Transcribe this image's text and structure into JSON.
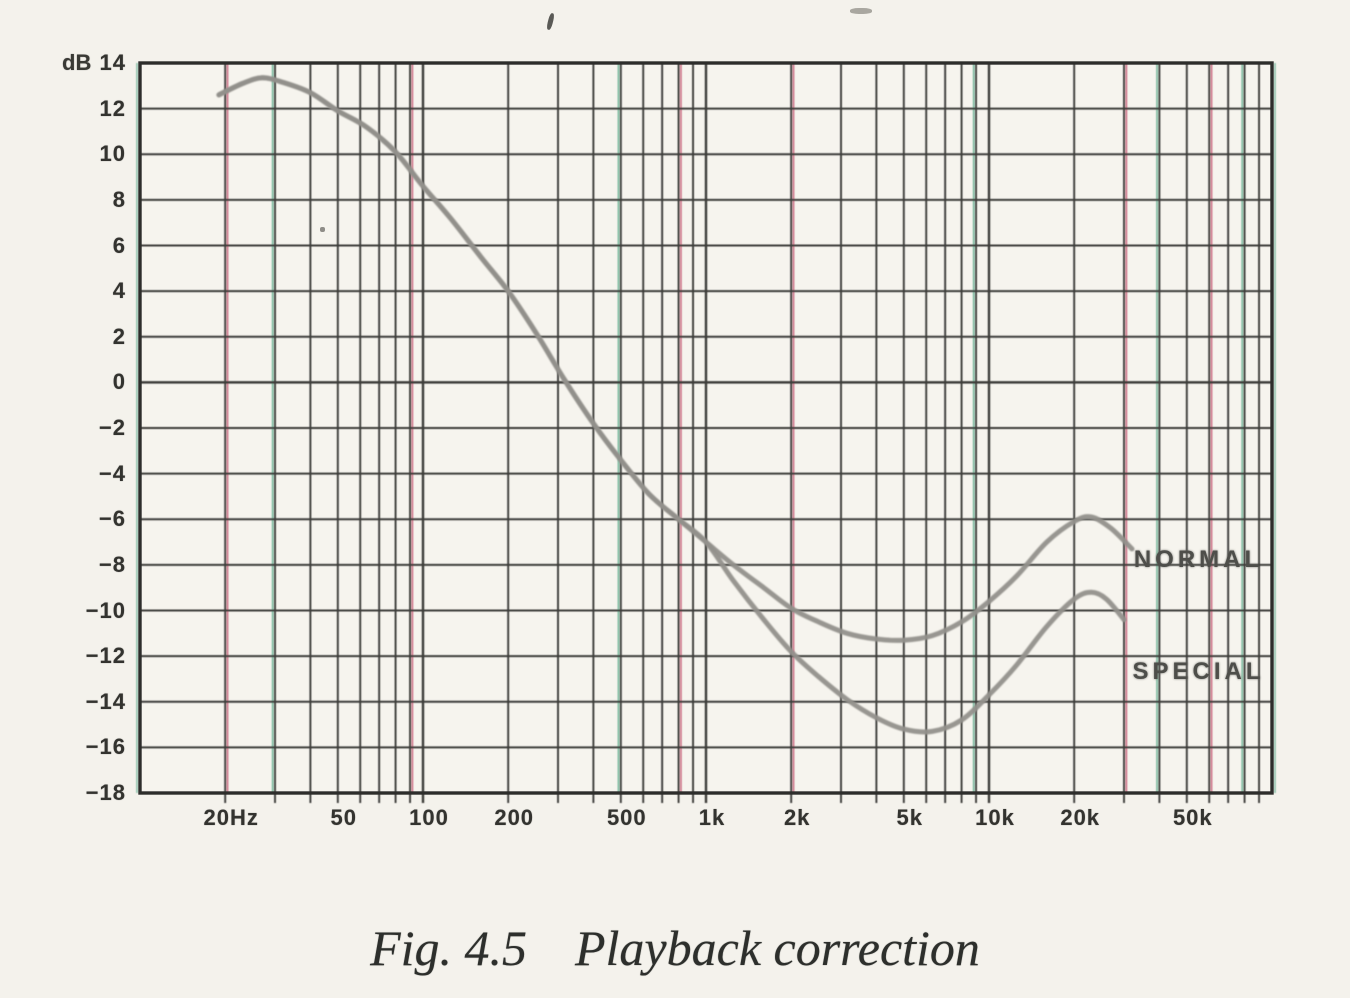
{
  "caption": {
    "figure_label": "Fig. 4.5",
    "title": "Playback correction"
  },
  "chart_data": {
    "type": "line",
    "title": "Playback correction",
    "x_axis": {
      "scale": "log",
      "unit": "Hz",
      "min": 10,
      "max": 100000,
      "ticks": [
        {
          "value": 20,
          "label": "20Hz"
        },
        {
          "value": 50,
          "label": "50"
        },
        {
          "value": 100,
          "label": "100"
        },
        {
          "value": 200,
          "label": "200"
        },
        {
          "value": 500,
          "label": "500"
        },
        {
          "value": 1000,
          "label": "1k"
        },
        {
          "value": 2000,
          "label": "2k"
        },
        {
          "value": 5000,
          "label": "5k"
        },
        {
          "value": 10000,
          "label": "10k"
        },
        {
          "value": 20000,
          "label": "20k"
        },
        {
          "value": 50000,
          "label": "50k"
        }
      ]
    },
    "y_axis": {
      "unit": "dB",
      "min": -18,
      "max": 14,
      "tick_step": 2,
      "ticks": [
        {
          "value": 14,
          "label": "14"
        },
        {
          "value": 12,
          "label": "12"
        },
        {
          "value": 10,
          "label": "10"
        },
        {
          "value": 8,
          "label": "8"
        },
        {
          "value": 6,
          "label": "6"
        },
        {
          "value": 4,
          "label": "4"
        },
        {
          "value": 2,
          "label": "2"
        },
        {
          "value": 0,
          "label": "0"
        },
        {
          "value": -2,
          "label": "−2"
        },
        {
          "value": -4,
          "label": "−4"
        },
        {
          "value": -6,
          "label": "−6"
        },
        {
          "value": -8,
          "label": "−8"
        },
        {
          "value": -10,
          "label": "−10"
        },
        {
          "value": -12,
          "label": "−12"
        },
        {
          "value": -14,
          "label": "−14"
        },
        {
          "value": -16,
          "label": "−16"
        },
        {
          "value": -18,
          "label": "−18"
        }
      ]
    },
    "grid": "log frequency grid on, 2 dB horizontal divisions",
    "legend_position": "labels at right end of curves",
    "series": [
      {
        "name": "NORMAL",
        "label_anchor": {
          "f": 55000,
          "db": -7.8
        },
        "points": [
          [
            19,
            12.6
          ],
          [
            23,
            13.1
          ],
          [
            27,
            13.35
          ],
          [
            32,
            13.15
          ],
          [
            40,
            12.7
          ],
          [
            50,
            11.9
          ],
          [
            63,
            11.2
          ],
          [
            80,
            10.1
          ],
          [
            100,
            8.6
          ],
          [
            125,
            7.2
          ],
          [
            160,
            5.5
          ],
          [
            200,
            4.0
          ],
          [
            250,
            2.2
          ],
          [
            315,
            0.15
          ],
          [
            400,
            -1.8
          ],
          [
            500,
            -3.4
          ],
          [
            630,
            -4.9
          ],
          [
            800,
            -6.0
          ],
          [
            1000,
            -7.0
          ],
          [
            1250,
            -8.0
          ],
          [
            1600,
            -9.0
          ],
          [
            2000,
            -9.9
          ],
          [
            2500,
            -10.5
          ],
          [
            3150,
            -11.0
          ],
          [
            4000,
            -11.25
          ],
          [
            5000,
            -11.3
          ],
          [
            6300,
            -11.1
          ],
          [
            8000,
            -10.5
          ],
          [
            10000,
            -9.6
          ],
          [
            12500,
            -8.5
          ],
          [
            16000,
            -7.0
          ],
          [
            20000,
            -6.1
          ],
          [
            23000,
            -5.9
          ],
          [
            27000,
            -6.4
          ],
          [
            32000,
            -7.3
          ]
        ]
      },
      {
        "name": "SPECIAL",
        "label_anchor": {
          "f": 55000,
          "db": -12.7
        },
        "points": [
          [
            19,
            12.6
          ],
          [
            23,
            13.1
          ],
          [
            27,
            13.35
          ],
          [
            32,
            13.15
          ],
          [
            40,
            12.7
          ],
          [
            50,
            11.9
          ],
          [
            63,
            11.2
          ],
          [
            80,
            10.1
          ],
          [
            100,
            8.6
          ],
          [
            125,
            7.2
          ],
          [
            160,
            5.5
          ],
          [
            200,
            4.0
          ],
          [
            250,
            2.2
          ],
          [
            315,
            0.15
          ],
          [
            400,
            -1.8
          ],
          [
            500,
            -3.4
          ],
          [
            630,
            -4.9
          ],
          [
            800,
            -6.0
          ],
          [
            1000,
            -7.0
          ],
          [
            1250,
            -8.7
          ],
          [
            1600,
            -10.4
          ],
          [
            2000,
            -11.8
          ],
          [
            2500,
            -12.9
          ],
          [
            3150,
            -13.9
          ],
          [
            4000,
            -14.7
          ],
          [
            5000,
            -15.2
          ],
          [
            6300,
            -15.3
          ],
          [
            8000,
            -14.8
          ],
          [
            10000,
            -13.7
          ],
          [
            12500,
            -12.4
          ],
          [
            16000,
            -10.7
          ],
          [
            20000,
            -9.5
          ],
          [
            23000,
            -9.2
          ],
          [
            26000,
            -9.5
          ],
          [
            30000,
            -10.4
          ]
        ]
      }
    ],
    "colors": {
      "curve": "#92908b",
      "grid": "#3c3c3a",
      "border": "#2d2d2b",
      "text": "#33332f",
      "scan_fringe_red": "#c4526e",
      "scan_fringe_green": "#5aa98a",
      "paper": "#f4f2ec"
    }
  }
}
